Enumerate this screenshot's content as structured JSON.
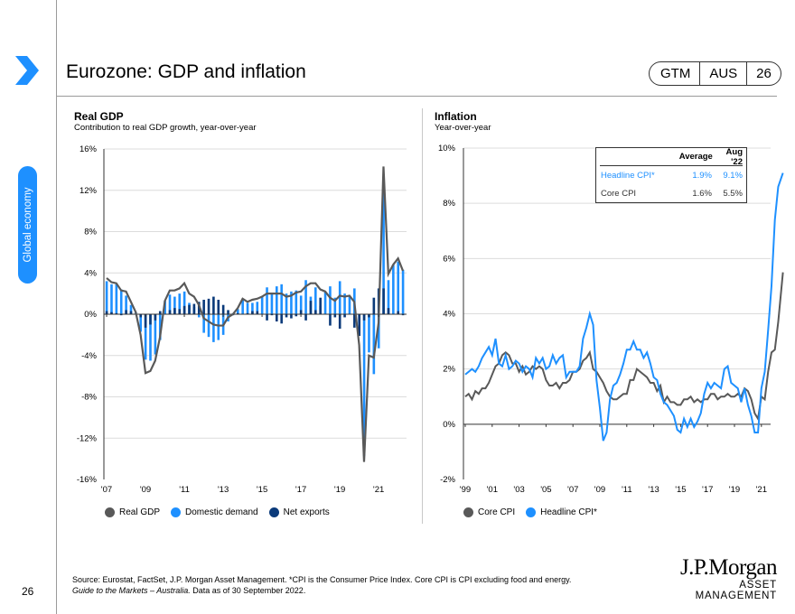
{
  "page": {
    "title": "Eurozone: GDP and inflation",
    "badge": [
      "GTM",
      "AUS",
      "26"
    ],
    "section_tab": "Global economy",
    "page_number": "26"
  },
  "colors": {
    "accent": "#1e90ff",
    "dark_gray": "#595959",
    "navy": "#0a3a7a",
    "light_blue": "#1e90ff"
  },
  "icons": {
    "nav": "chevron-right-icon"
  },
  "footer": {
    "source": "Source: Eurostat, FactSet, J.P. Morgan Asset Management. *CPI is the Consumer Price Index. Core CPI is CPI excluding food and energy.",
    "guide": "Guide to the Markets – Australia.",
    "asof": " Data as of 30 September 2022."
  },
  "logo": {
    "line1": "J.P.Morgan",
    "line2": "ASSET MANAGEMENT"
  },
  "chart_data": [
    {
      "type": "bar",
      "title": "Real GDP",
      "subtitle": "Contribution to real GDP growth, year-over-year",
      "frequency": "quarterly",
      "start": "2007Q1",
      "end": "2022Q2",
      "xtick_labels": [
        "'07",
        "'09",
        "'11",
        "'13",
        "'15",
        "'17",
        "'19",
        "'21"
      ],
      "ytick_labels": [
        "16%",
        "12%",
        "8%",
        "4%",
        "0%",
        "-4%",
        "-8%",
        "-12%",
        "-16%"
      ],
      "ylim": [
        -16,
        16
      ],
      "grid": true,
      "legend": "bottom",
      "series": [
        {
          "name": "Real GDP",
          "kind": "line",
          "color": "#595959",
          "values": [
            3.5,
            3.1,
            3.0,
            2.3,
            2.2,
            1.2,
            0.2,
            -2.0,
            -5.7,
            -5.5,
            -4.5,
            -2.2,
            1.3,
            2.3,
            2.3,
            2.5,
            3.0,
            2.0,
            1.7,
            0.9,
            -0.4,
            -0.7,
            -1.0,
            -1.1,
            -1.1,
            -0.3,
            0.0,
            0.6,
            1.5,
            1.2,
            1.4,
            1.5,
            1.7,
            2.0,
            2.0,
            2.0,
            2.0,
            1.7,
            1.8,
            2.1,
            2.2,
            2.7,
            3.0,
            3.0,
            2.4,
            2.2,
            1.6,
            1.3,
            1.8,
            1.7,
            1.8,
            1.2,
            -3.0,
            -14.3,
            -4.0,
            -4.2,
            -0.8,
            14.3,
            3.9,
            4.8,
            5.4,
            4.2
          ]
        },
        {
          "name": "Domestic demand",
          "kind": "bar",
          "color": "#1e90ff",
          "values": [
            3.2,
            2.9,
            2.9,
            2.4,
            1.8,
            0.9,
            0.2,
            -1.7,
            -4.4,
            -4.5,
            -3.9,
            -2.5,
            1.3,
            1.9,
            1.7,
            2.0,
            2.2,
            1.1,
            0.7,
            -0.3,
            -1.8,
            -2.2,
            -2.7,
            -2.5,
            -2.0,
            -0.7,
            0.1,
            0.5,
            1.5,
            1.1,
            1.1,
            1.2,
            1.7,
            2.6,
            2.1,
            2.7,
            2.9,
            2.0,
            2.2,
            2.3,
            1.8,
            3.3,
            1.7,
            2.6,
            0.8,
            2.2,
            2.7,
            1.6,
            3.2,
            2.0,
            1.8,
            2.5,
            -0.9,
            -13.7,
            -3.7,
            -5.8,
            -3.3,
            11.8,
            3.3,
            4.8,
            5.1,
            4.3
          ]
        },
        {
          "name": "Net exports",
          "kind": "bar",
          "color": "#0a3a7a",
          "values": [
            0.3,
            0.2,
            0.1,
            -0.1,
            0.4,
            0.3,
            0.0,
            -0.3,
            -1.3,
            -1.0,
            -0.6,
            0.3,
            0.0,
            0.4,
            0.6,
            0.5,
            0.8,
            0.9,
            1.0,
            1.2,
            1.4,
            1.5,
            1.7,
            1.4,
            0.9,
            0.4,
            -0.1,
            0.1,
            0.0,
            0.1,
            0.3,
            0.3,
            0.0,
            -0.6,
            -0.1,
            -0.7,
            -0.9,
            -0.3,
            -0.4,
            -0.2,
            0.4,
            -0.6,
            1.3,
            0.4,
            1.6,
            0.0,
            -1.1,
            -0.3,
            -1.4,
            -0.3,
            0.0,
            -1.3,
            -2.1,
            -0.6,
            -0.3,
            1.6,
            2.5,
            2.5,
            0.6,
            0.0,
            0.3,
            -0.1
          ]
        }
      ]
    },
    {
      "type": "line",
      "title": "Inflation",
      "subtitle": "Year-over-year",
      "frequency": "quarterly",
      "start": "1999Q1",
      "end": "2022-08",
      "xtick_labels": [
        "'99",
        "'01",
        "'03",
        "'05",
        "'07",
        "'09",
        "'11",
        "'13",
        "'15",
        "'17",
        "'19",
        "'21"
      ],
      "ytick_labels": [
        "10%",
        "8%",
        "6%",
        "4%",
        "2%",
        "0%",
        "-2%"
      ],
      "ylim": [
        -2,
        10
      ],
      "grid": true,
      "legend": "bottom",
      "series": [
        {
          "name": "Core CPI",
          "color": "#595959",
          "values": [
            1.0,
            1.1,
            0.9,
            1.2,
            1.1,
            1.3,
            1.3,
            1.5,
            1.8,
            2.1,
            2.2,
            2.5,
            2.6,
            2.5,
            2.2,
            2.2,
            1.9,
            2.1,
            1.8,
            1.9,
            2.1,
            2.0,
            2.1,
            2.0,
            1.6,
            1.4,
            1.4,
            1.5,
            1.3,
            1.5,
            1.5,
            1.6,
            1.9,
            1.9,
            2.0,
            2.3,
            2.4,
            2.6,
            2.0,
            1.9,
            1.7,
            1.5,
            1.2,
            1.0,
            0.9,
            0.9,
            1.0,
            1.1,
            1.1,
            1.6,
            1.6,
            2.0,
            1.9,
            1.8,
            1.7,
            1.5,
            1.5,
            1.2,
            1.4,
            0.8,
            1.0,
            0.8,
            0.8,
            0.7,
            0.7,
            0.9,
            0.9,
            1.0,
            0.8,
            0.9,
            0.8,
            0.9,
            0.9,
            1.1,
            1.1,
            0.9,
            1.0,
            1.0,
            1.1,
            1.0,
            1.0,
            1.1,
            1.0,
            1.3,
            1.2,
            0.9,
            0.4,
            0.2,
            1.0,
            0.9,
            1.9,
            2.6,
            2.7,
            3.7,
            5.5
          ]
        },
        {
          "name": "Headline CPI*",
          "color": "#1e90ff",
          "values": [
            1.8,
            1.9,
            2.0,
            1.9,
            2.1,
            2.4,
            2.6,
            2.8,
            2.5,
            3.1,
            2.2,
            2.1,
            2.5,
            2.0,
            2.1,
            2.3,
            2.2,
            1.9,
            2.1,
            2.0,
            1.7,
            2.4,
            2.2,
            2.4,
            2.0,
            2.1,
            2.5,
            2.2,
            2.4,
            2.5,
            1.7,
            1.9,
            1.9,
            1.9,
            2.1,
            3.1,
            3.5,
            4.0,
            3.6,
            1.6,
            0.6,
            -0.6,
            -0.3,
            0.9,
            1.4,
            1.5,
            1.8,
            2.2,
            2.7,
            2.7,
            3.0,
            2.7,
            2.7,
            2.4,
            2.6,
            2.2,
            1.7,
            1.6,
            1.1,
            0.8,
            0.7,
            0.5,
            0.3,
            -0.2,
            -0.3,
            0.2,
            -0.1,
            0.2,
            -0.1,
            0.1,
            0.4,
            1.1,
            1.5,
            1.3,
            1.5,
            1.4,
            1.3,
            2.0,
            2.1,
            1.5,
            1.4,
            1.3,
            0.8,
            1.3,
            0.7,
            0.3,
            -0.3,
            -0.3,
            1.3,
            1.9,
            3.4,
            5.0,
            7.4,
            8.6,
            9.1
          ]
        }
      ],
      "table": {
        "headers": [
          "",
          "Average",
          "Aug '22"
        ],
        "rows": [
          [
            "Headline CPI*",
            "1.9%",
            "9.1%"
          ],
          [
            "Core CPI",
            "1.6%",
            "5.5%"
          ]
        ]
      }
    }
  ]
}
